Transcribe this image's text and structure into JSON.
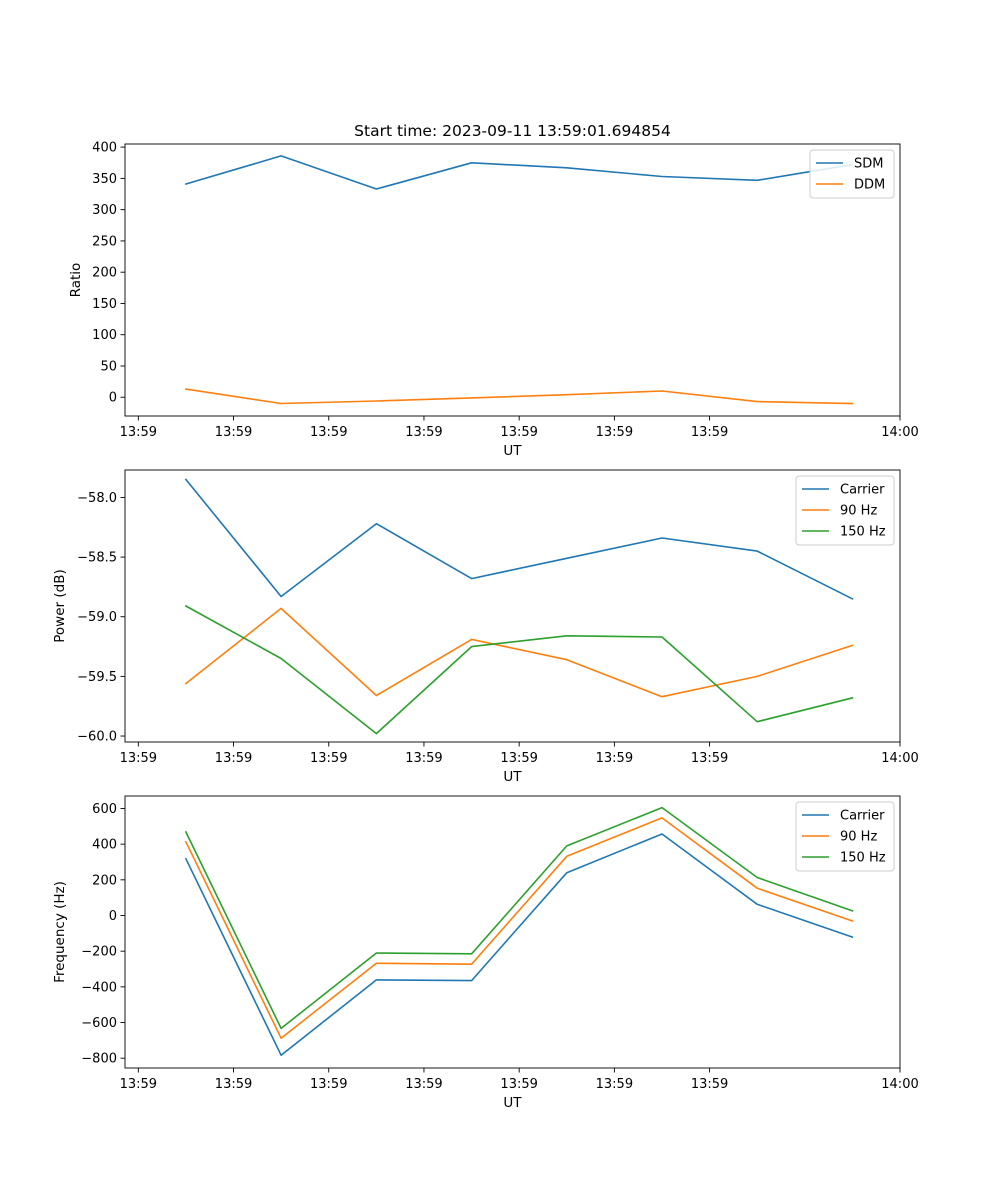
{
  "figure": {
    "title": "Start time: 2023-09-11 13:59:01.694854"
  },
  "colors": {
    "blue": "#1f77b4",
    "orange": "#ff7f0e",
    "green": "#2ca02c"
  },
  "chart_data": [
    {
      "type": "line",
      "title": "Start time: 2023-09-11 13:59:01.694854",
      "xlabel": "UT",
      "ylabel": "Ratio",
      "x_index": [
        0,
        1,
        2,
        3,
        4,
        5,
        6,
        7
      ],
      "x_ticks": [
        -0.5,
        0.5,
        1.5,
        2.5,
        3.5,
        4.5,
        5.5,
        7.5
      ],
      "x_tick_labels": [
        "13:59",
        "13:59",
        "13:59",
        "13:59",
        "13:59",
        "13:59",
        "13:59",
        "14:00"
      ],
      "xlim": [
        -0.64,
        7.5
      ],
      "ylim": [
        -30,
        405
      ],
      "y_ticks": [
        0,
        50,
        100,
        150,
        200,
        250,
        300,
        350,
        400
      ],
      "y_tick_labels": [
        "0",
        "50",
        "100",
        "150",
        "200",
        "250",
        "300",
        "350",
        "400"
      ],
      "legend_position": "top-right",
      "series": [
        {
          "name": "SDM",
          "color": "#1f77b4",
          "values": [
            341,
            386,
            333,
            375,
            367,
            353,
            347,
            372
          ]
        },
        {
          "name": "DDM",
          "color": "#ff7f0e",
          "values": [
            13,
            -10,
            -6,
            -1,
            4,
            10,
            -7,
            -10
          ]
        }
      ]
    },
    {
      "type": "line",
      "xlabel": "UT",
      "ylabel": "Power (dB)",
      "x_index": [
        0,
        1,
        2,
        3,
        4,
        5,
        6,
        7
      ],
      "x_ticks": [
        -0.5,
        0.5,
        1.5,
        2.5,
        3.5,
        4.5,
        5.5,
        7.5
      ],
      "x_tick_labels": [
        "13:59",
        "13:59",
        "13:59",
        "13:59",
        "13:59",
        "13:59",
        "13:59",
        "14:00"
      ],
      "xlim": [
        -0.64,
        7.5
      ],
      "ylim": [
        -60.05,
        -57.77
      ],
      "y_ticks": [
        -58.0,
        -58.5,
        -59.0,
        -59.5,
        -60.0
      ],
      "y_tick_labels": [
        "−58.0",
        "−58.5",
        "−59.0",
        "−59.5",
        "−60.0"
      ],
      "legend_position": "top-right",
      "series": [
        {
          "name": "Carrier",
          "color": "#1f77b4",
          "values": [
            -57.85,
            -58.83,
            -58.22,
            -58.68,
            -58.51,
            -58.34,
            -58.45,
            -58.85
          ]
        },
        {
          "name": "90 Hz",
          "color": "#ff7f0e",
          "values": [
            -59.56,
            -58.93,
            -59.66,
            -59.19,
            -59.36,
            -59.67,
            -59.5,
            -59.24
          ]
        },
        {
          "name": "150 Hz",
          "color": "#2ca02c",
          "values": [
            -58.91,
            -59.35,
            -59.98,
            -59.25,
            -59.16,
            -59.17,
            -59.88,
            -59.68
          ]
        }
      ]
    },
    {
      "type": "line",
      "xlabel": "UT",
      "ylabel": "Frequency (Hz)",
      "x_index": [
        0,
        1,
        2,
        3,
        4,
        5,
        6,
        7
      ],
      "x_ticks": [
        -0.5,
        0.5,
        1.5,
        2.5,
        3.5,
        4.5,
        5.5,
        7.5
      ],
      "x_tick_labels": [
        "13:59",
        "13:59",
        "13:59",
        "13:59",
        "13:59",
        "13:59",
        "13:59",
        "14:00"
      ],
      "xlim": [
        -0.64,
        7.5
      ],
      "ylim": [
        -855,
        670
      ],
      "y_ticks": [
        600,
        400,
        200,
        0,
        -200,
        -400,
        -600,
        -800
      ],
      "y_tick_labels": [
        "600",
        "400",
        "200",
        "0",
        "−200",
        "−400",
        "−600",
        "−800"
      ],
      "legend_position": "top-right",
      "series": [
        {
          "name": "Carrier",
          "color": "#1f77b4",
          "values": [
            318,
            -783,
            -361,
            -365,
            240,
            457,
            63,
            -121
          ]
        },
        {
          "name": "90 Hz",
          "color": "#ff7f0e",
          "values": [
            413,
            -688,
            -268,
            -273,
            332,
            547,
            153,
            -31
          ]
        },
        {
          "name": "150 Hz",
          "color": "#2ca02c",
          "values": [
            468,
            -633,
            -210,
            -215,
            390,
            605,
            213,
            26
          ]
        }
      ]
    }
  ]
}
